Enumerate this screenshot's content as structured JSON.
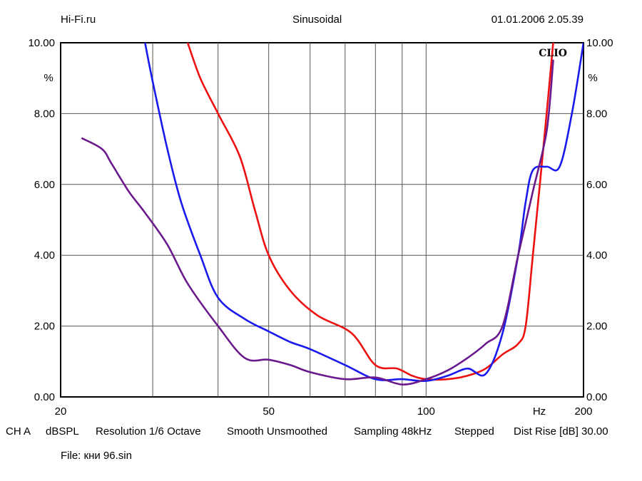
{
  "header": {
    "source": "Hi-Fi.ru",
    "mode": "Sinusoidal",
    "datetime": "01.01.2006 2.05.39"
  },
  "footer": {
    "channel": "CH A",
    "unit": "dBSPL",
    "resolution": "Resolution 1/6 Octave",
    "smoothing": "Smooth Unsmoothed",
    "sampling": "Sampling 48kHz",
    "stepping": "Stepped",
    "dist_rise": "Dist Rise [dB] 30.00",
    "file": "File: кни 96.sin"
  },
  "logo_text": "CLIO",
  "colors": {
    "red": "#ee1111",
    "blue": "#1a1aee",
    "purple": "#6a1a8c",
    "grid": "#555555"
  },
  "chart_data": {
    "type": "line",
    "title": "Sinusoidal",
    "xlabel": "Hz",
    "ylabel": "%",
    "xscale": "log",
    "xlim": [
      20,
      200
    ],
    "ylim": [
      0,
      10
    ],
    "grid": true,
    "x_ticks": [
      "20",
      "50",
      "100",
      "200"
    ],
    "x_unit_label": "Hz",
    "y_ticks": [
      "0.00",
      "2.00",
      "4.00",
      "6.00",
      "8.00",
      "10.00"
    ],
    "y_unit_label": "%",
    "series": [
      {
        "name": "red",
        "color": "#ee1111",
        "x": [
          35,
          37,
          40,
          44,
          47,
          50,
          55,
          62,
          72,
          80,
          88,
          94,
          100,
          110,
          120,
          130,
          140,
          150,
          155,
          160,
          165,
          170,
          175
        ],
        "y": [
          10.0,
          9.0,
          8.0,
          6.8,
          5.3,
          4.0,
          3.0,
          2.3,
          1.8,
          0.9,
          0.8,
          0.6,
          0.5,
          0.5,
          0.6,
          0.8,
          1.2,
          1.5,
          2.0,
          4.0,
          6.0,
          8.0,
          10.0
        ]
      },
      {
        "name": "blue",
        "color": "#1a1aee",
        "x": [
          29,
          30,
          32,
          34,
          37,
          40,
          45,
          50,
          55,
          60,
          70,
          80,
          90,
          100,
          110,
          120,
          130,
          140,
          150,
          155,
          160,
          170,
          180,
          190,
          200
        ],
        "y": [
          10.0,
          8.9,
          7.0,
          5.5,
          4.0,
          2.8,
          2.2,
          1.85,
          1.55,
          1.35,
          0.9,
          0.5,
          0.5,
          0.45,
          0.6,
          0.8,
          0.65,
          1.8,
          4.0,
          5.5,
          6.4,
          6.5,
          6.5,
          8.0,
          10.0
        ]
      },
      {
        "name": "purple",
        "color": "#6a1a8c",
        "x": [
          22,
          24,
          25,
          27,
          29,
          32,
          35,
          40,
          45,
          50,
          55,
          60,
          70,
          80,
          90,
          100,
          110,
          120,
          130,
          140,
          150,
          160,
          170,
          175
        ],
        "y": [
          7.3,
          7.0,
          6.6,
          5.8,
          5.2,
          4.3,
          3.2,
          2.0,
          1.1,
          1.05,
          0.9,
          0.7,
          0.5,
          0.55,
          0.35,
          0.5,
          0.75,
          1.1,
          1.5,
          2.0,
          4.0,
          5.8,
          7.5,
          9.5
        ]
      }
    ]
  }
}
